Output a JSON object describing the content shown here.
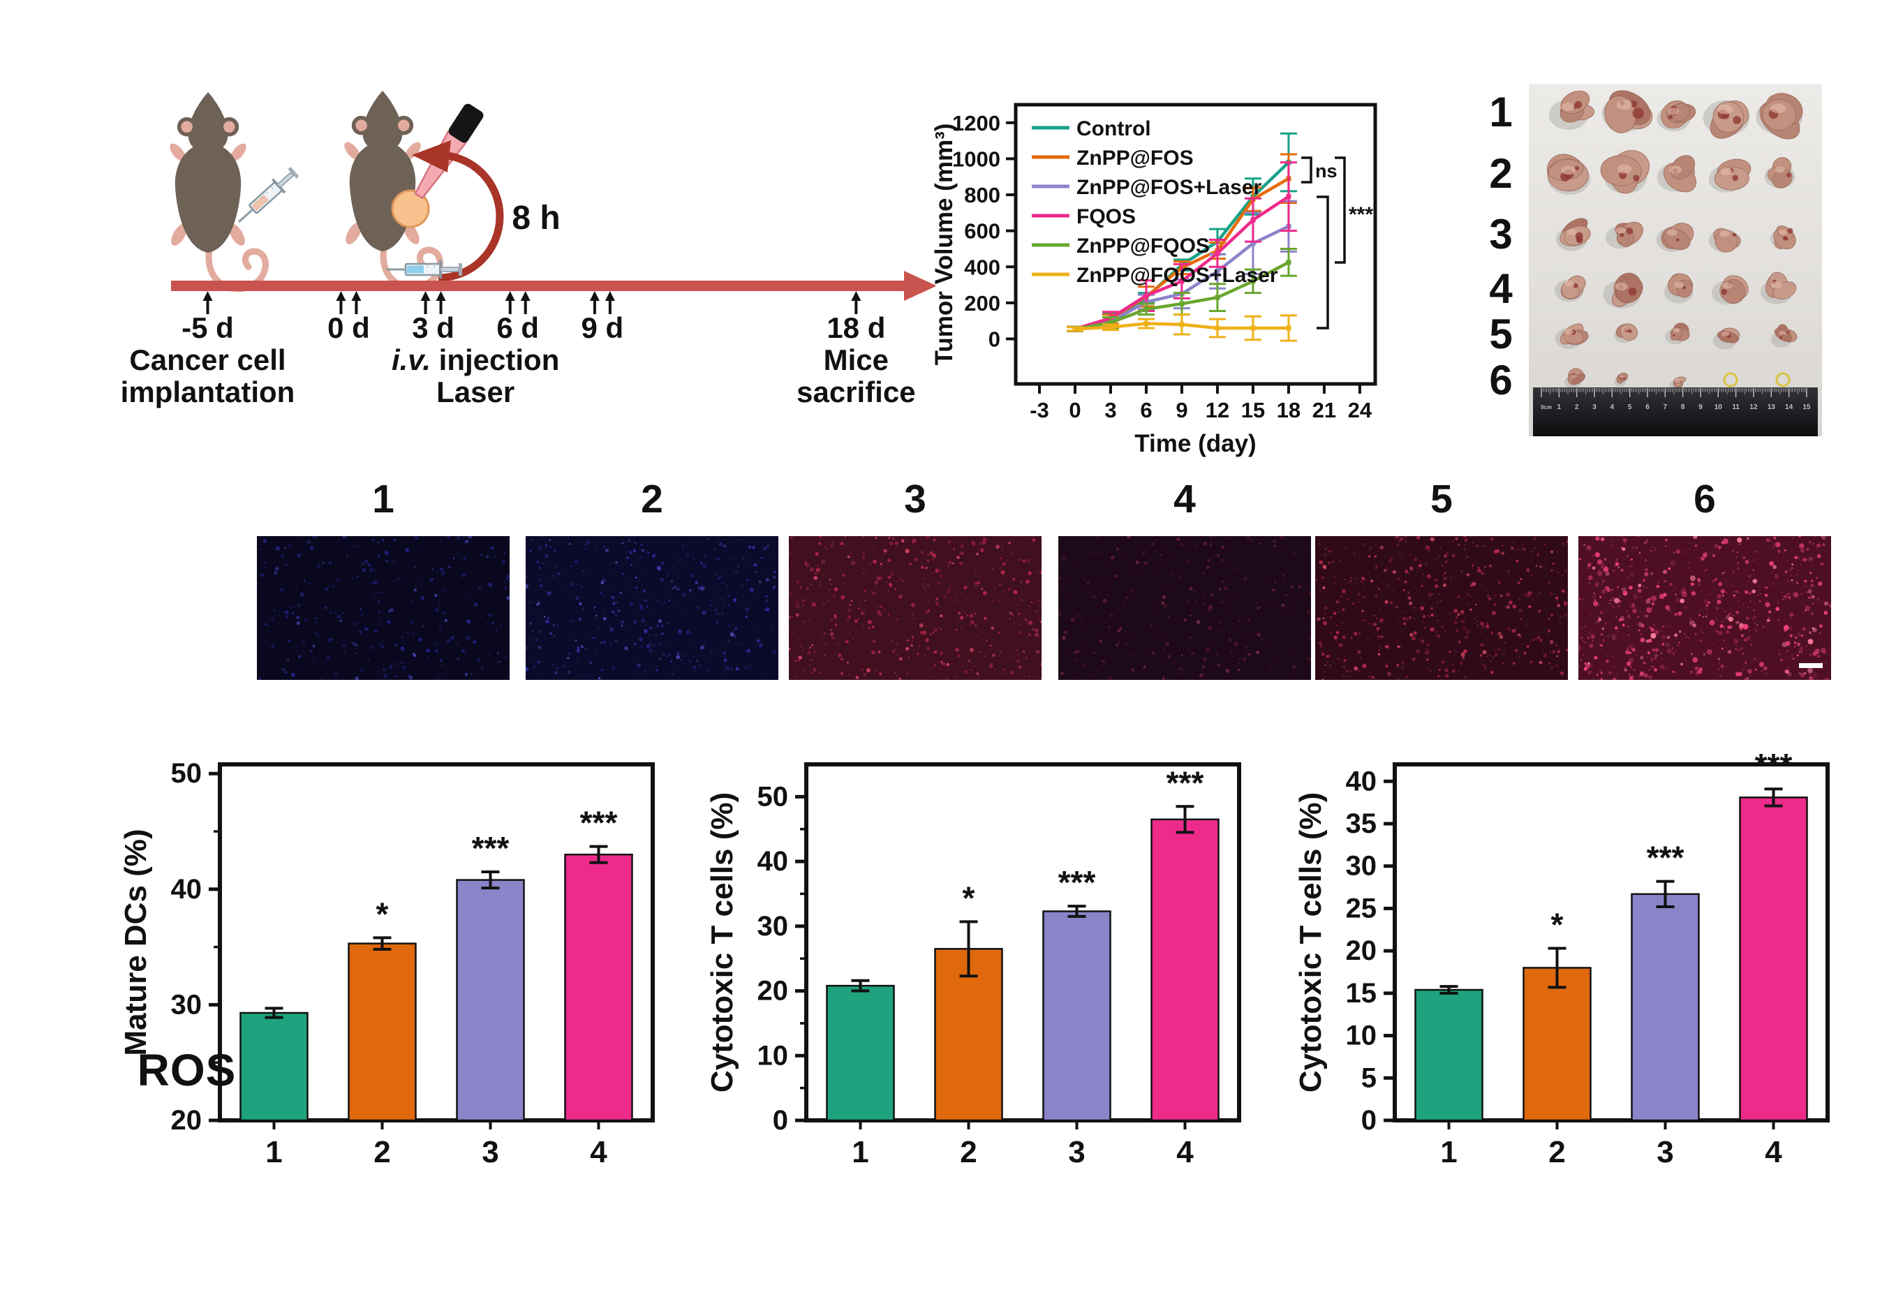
{
  "scheme": {
    "laser_duration": "8 h",
    "iv_label_italic": "i.v.",
    "iv_label_rest": " injection",
    "laser_label": "Laser",
    "timeline_points": [
      {
        "label": "-5 d",
        "day": -5,
        "arrows": 1,
        "caption": [
          "Cancer cell",
          "implantation"
        ]
      },
      {
        "label": "0 d",
        "day": 0,
        "arrows": 2,
        "caption": []
      },
      {
        "label": "3 d",
        "day": 3,
        "arrows": 2,
        "caption": []
      },
      {
        "label": "6 d",
        "day": 6,
        "arrows": 2,
        "caption": []
      },
      {
        "label": "9 d",
        "day": 9,
        "arrows": 2,
        "caption": []
      },
      {
        "label": "18 d",
        "day": 18,
        "arrows": 1,
        "caption": [
          "Mice",
          "sacrifice"
        ]
      }
    ],
    "colors": {
      "timeline": "#c9534e",
      "mouse": "#6e6156",
      "mouse_pink": "#e2ab9e",
      "tumor": "#f7c28e",
      "tumor_edge": "#e09659",
      "laser_beam": "#f5aab2",
      "laser_beam_edge": "#d4727e",
      "arrow_red": "#a93428"
    }
  },
  "tumor_photo": {
    "row_labels": [
      "1",
      "2",
      "3",
      "4",
      "5",
      "6"
    ],
    "tumors_per_row": [
      5,
      5,
      5,
      5,
      5,
      3
    ],
    "empty_ring_marks_row6": 2,
    "ruler_numbers": [
      "0cm",
      "1",
      "2",
      "3",
      "4",
      "5",
      "6",
      "7",
      "8",
      "9",
      "10",
      "11",
      "12",
      "13",
      "14",
      "15"
    ]
  },
  "ros": {
    "row_label": "ROS",
    "panels": [
      {
        "label": "1",
        "base": "#0a081f",
        "speckle": "#3333c8",
        "speckle2": "#5a5ae8",
        "n": 380,
        "bright": 0.55,
        "scalebar": false
      },
      {
        "label": "2",
        "base": "#0b0a2a",
        "speckle": "#4040dc",
        "speckle2": "#6a6af5",
        "n": 440,
        "bright": 0.65,
        "scalebar": false
      },
      {
        "label": "3",
        "base": "#400f20",
        "speckle": "#cc2b50",
        "speckle2": "#ef5070",
        "n": 560,
        "bright": 0.8,
        "scalebar": false
      },
      {
        "label": "4",
        "base": "#1d0919",
        "speckle": "#8c2544",
        "speckle2": "#b04060",
        "n": 320,
        "bright": 0.5,
        "scalebar": false
      },
      {
        "label": "5",
        "base": "#310a19",
        "speckle": "#d83058",
        "speckle2": "#f05570",
        "n": 540,
        "bright": 0.8,
        "scalebar": false
      },
      {
        "label": "6",
        "base": "#4e0f24",
        "speckle": "#f5447a",
        "speckle2": "#ff7fa0",
        "n": 680,
        "bright": 1.0,
        "scalebar": true
      }
    ]
  },
  "chart_data": [
    {
      "type": "line",
      "title": "",
      "xlabel": "Time (day)",
      "ylabel": "Tumor Volume (mm³)",
      "x": [
        0,
        3,
        6,
        9,
        12,
        15,
        18
      ],
      "xlim": [
        -5,
        25.3
      ],
      "ylim": [
        -250,
        1300
      ],
      "xticks": [
        -3,
        0,
        3,
        6,
        9,
        12,
        15,
        18,
        21,
        24
      ],
      "yticks": [
        0,
        200,
        400,
        600,
        800,
        1000,
        1200
      ],
      "grid": false,
      "legend_position": "upper-left-inside",
      "series": [
        {
          "name": "Control",
          "color": "#17a288",
          "values": [
            55,
            105,
            230,
            410,
            540,
            790,
            980
          ],
          "errors": [
            12,
            40,
            25,
            30,
            70,
            100,
            160
          ]
        },
        {
          "name": "ZnPP@FOS",
          "color": "#e56b0b",
          "values": [
            55,
            110,
            235,
            395,
            490,
            775,
            890
          ],
          "errors": [
            12,
            25,
            55,
            35,
            45,
            65,
            135
          ]
        },
        {
          "name": "ZnPP@FOS+Laser",
          "color": "#8a84c9",
          "values": [
            55,
            95,
            205,
            250,
            375,
            530,
            625
          ],
          "errors": [
            12,
            25,
            40,
            80,
            95,
            170,
            140
          ]
        },
        {
          "name": "FQOS",
          "color": "#ee2a8b",
          "values": [
            55,
            115,
            240,
            320,
            475,
            660,
            790
          ],
          "errors": [
            12,
            35,
            85,
            95,
            75,
            120,
            190
          ]
        },
        {
          "name": "ZnPP@FQOS",
          "color": "#68a62e",
          "values": [
            55,
            90,
            165,
            195,
            230,
            320,
            425
          ],
          "errors": [
            12,
            30,
            30,
            60,
            75,
            65,
            75
          ]
        },
        {
          "name": "ZnPP@FQOS+Laser",
          "color": "#eeb017",
          "values": [
            55,
            65,
            85,
            80,
            60,
            60,
            60
          ],
          "errors": [
            10,
            15,
            25,
            55,
            50,
            65,
            70
          ]
        }
      ],
      "annotations": [
        {
          "label": "ns"
        },
        {
          "label": "***"
        }
      ]
    },
    {
      "type": "bar",
      "ylabel": "Mature DCs (%)",
      "categories": [
        "1",
        "2",
        "3",
        "4"
      ],
      "values": [
        29.3,
        35.3,
        40.8,
        43.0
      ],
      "errors": [
        0.4,
        0.5,
        0.7,
        0.7
      ],
      "sig": [
        "",
        "*",
        "***",
        "***"
      ],
      "ylim": [
        20,
        50.8
      ],
      "yticks": [
        20,
        30,
        40,
        50
      ],
      "yminor": [
        25,
        35,
        45
      ],
      "colors": [
        "#1fa37e",
        "#e0690d",
        "#8a84c9",
        "#ee2a8b"
      ]
    },
    {
      "type": "bar",
      "ylabel": "Cytotoxic T cells (%)",
      "categories": [
        "1",
        "2",
        "3",
        "4"
      ],
      "values": [
        20.8,
        26.5,
        32.3,
        46.5
      ],
      "errors": [
        0.8,
        4.2,
        0.8,
        2.0
      ],
      "sig": [
        "",
        "*",
        "***",
        "***"
      ],
      "ylim": [
        0,
        55
      ],
      "yticks": [
        0,
        10,
        20,
        30,
        40,
        50
      ],
      "yminor": [
        5,
        15,
        25,
        35,
        45
      ],
      "colors": [
        "#1fa37e",
        "#e0690d",
        "#8a84c9",
        "#ee2a8b"
      ]
    },
    {
      "type": "bar",
      "ylabel": "Cytotoxic T cells (%)",
      "categories": [
        "1",
        "2",
        "3",
        "4"
      ],
      "values": [
        15.4,
        18.0,
        26.7,
        38.1
      ],
      "errors": [
        0.4,
        2.3,
        1.5,
        1.0
      ],
      "sig": [
        "",
        "*",
        "***",
        "***"
      ],
      "ylim": [
        0,
        42
      ],
      "yticks": [
        0,
        5,
        10,
        15,
        20,
        25,
        30,
        35,
        40
      ],
      "yminor": [],
      "colors": [
        "#1fa37e",
        "#e0690d",
        "#8a84c9",
        "#ee2a8b"
      ]
    }
  ]
}
